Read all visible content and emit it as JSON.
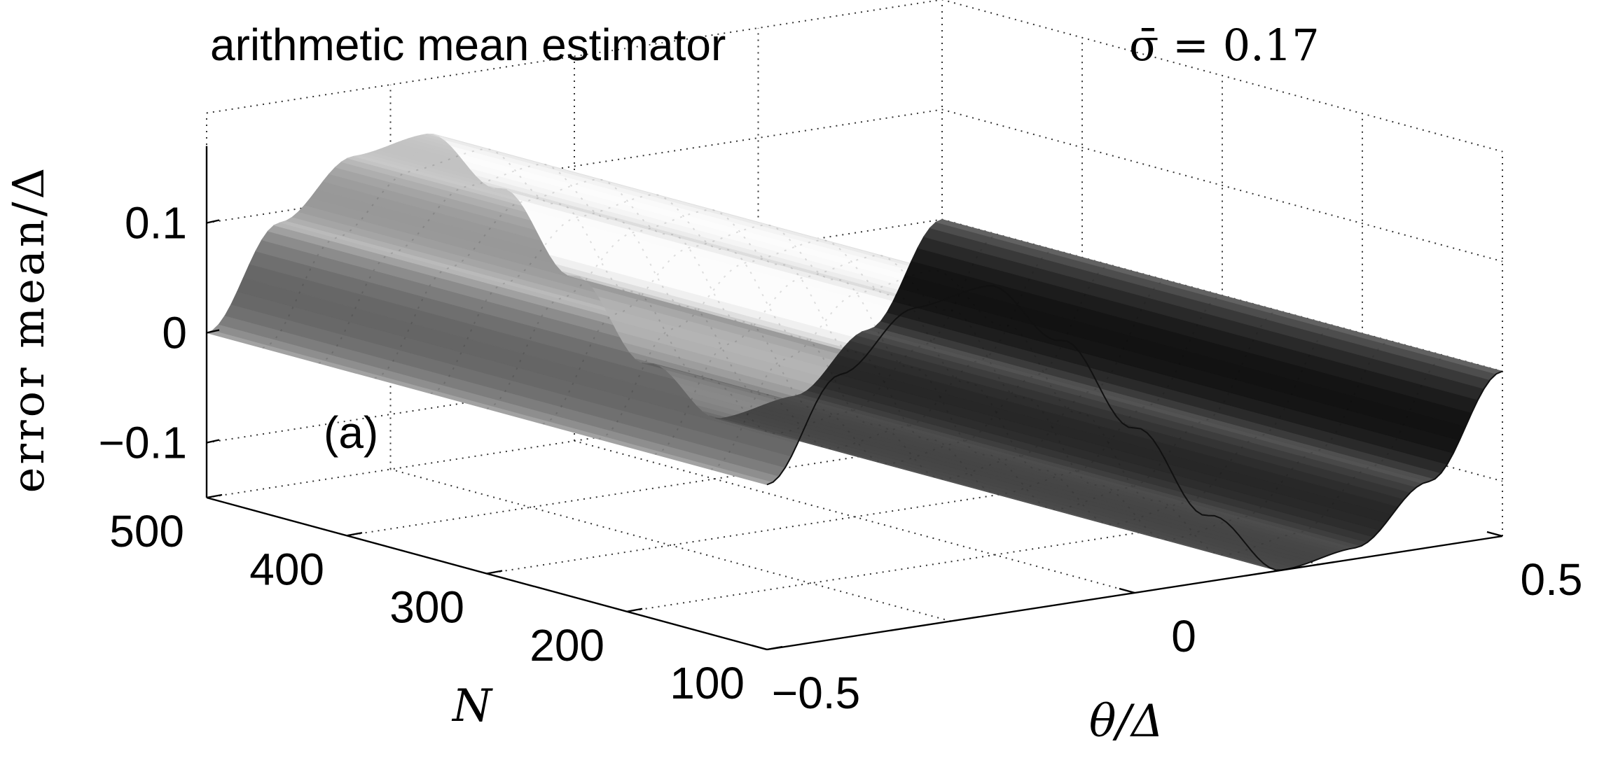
{
  "chart_data": {
    "type": "surface",
    "title": "arithmetic mean estimator",
    "subtitle": "σ̄ = 0.17",
    "panel_label": "(a)",
    "xlabel": "θ/Δ",
    "ylabel": "N",
    "zlabel": "error mean/Δ",
    "x_ticks": [
      "−0.5",
      "0",
      "0.5"
    ],
    "y_ticks": [
      "100",
      "200",
      "300",
      "400",
      "500"
    ],
    "z_ticks": [
      "0.1",
      "0",
      "−0.1"
    ],
    "xlim": [
      -0.5,
      0.5
    ],
    "ylim": [
      100,
      500
    ],
    "zlim": [
      -0.15,
      0.15
    ],
    "grid": true,
    "colormap": "gray",
    "surface": {
      "description_x": [
        -0.5,
        -0.4,
        -0.3,
        -0.2,
        -0.1,
        0,
        0.1,
        0.2,
        0.3,
        0.4,
        0.5
      ],
      "x": [
        -0.5,
        -0.4,
        -0.3,
        -0.2,
        -0.1,
        0.0,
        0.1,
        0.2,
        0.3,
        0.4,
        0.5
      ],
      "z": [
        0.0,
        0.09,
        0.14,
        0.15,
        0.09,
        0.0,
        -0.09,
        -0.15,
        -0.14,
        -0.09,
        0.0
      ],
      "constant_along_N": true
    }
  }
}
